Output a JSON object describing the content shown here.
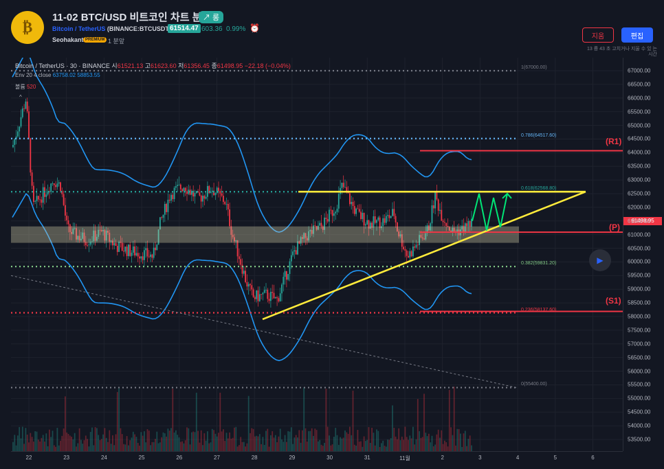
{
  "header": {
    "logo_glyph": "₿",
    "title": "11-02 BTC/USD 비트코인 차트 분석",
    "trend_badge": "↗ 롱",
    "symbol_name": "Bitcoin / TetherUS",
    "symbol_code": "(BINANCE:BTCUSDT)",
    "price": "61514.47",
    "change": "603.36",
    "change_pct": "0.99%",
    "alarm_icon": "⏰",
    "author": "Seohakant",
    "premium": "PREMIUM",
    "time_ago": "1 분앞",
    "delete_label": "지움",
    "edit_label": "편집",
    "edit_note": "13 륭 43 초 고치거나 지울 수 있 는 시간"
  },
  "legend": {
    "line1_prefix": "Bitcoin / TetherUS · 30 · BINANCE",
    "o_label": "시",
    "o_val": "61521.13",
    "h_label": "고",
    "h_val": "61623.60",
    "l_label": "저",
    "l_val": "61356.45",
    "c_label": "종",
    "c_val": "61498.95",
    "delta": "−22.18 (−0.04%)",
    "env_label": "Env 20 4 close",
    "env_upper": "63758.02",
    "env_lower": "58853.55",
    "vol_label": "볼륨",
    "vol_val": "520"
  },
  "y_axis": {
    "ticks": [
      "67000.00",
      "66500.00",
      "66000.00",
      "65500.00",
      "65000.00",
      "64500.00",
      "64000.00",
      "63500.00",
      "63000.00",
      "62500.00",
      "62000.00",
      "61500.00",
      "61000.00",
      "60500.00",
      "60000.00",
      "59500.00",
      "59000.00",
      "58500.00",
      "58000.00",
      "57500.00",
      "57000.00",
      "56500.00",
      "56000.00",
      "55500.00",
      "55000.00",
      "54500.00",
      "54000.00",
      "53500.00"
    ],
    "last_price": "61498.95"
  },
  "x_axis": {
    "ticks": [
      "22",
      "23",
      "24",
      "25",
      "26",
      "27",
      "28",
      "29",
      "30",
      "31",
      "11월",
      "2",
      "3",
      "4",
      "5",
      "6"
    ]
  },
  "fib_levels": [
    {
      "label": "1(67000.00)",
      "value": 67000
    },
    {
      "label": "0.786(64517.60)",
      "value": 64517.6
    },
    {
      "label": "0.618(62568.80)",
      "value": 62568.8
    },
    {
      "label": "0.382(59831.20)",
      "value": 59831.2
    },
    {
      "label": "0.236(58137.60)",
      "value": 58137.6
    },
    {
      "label": "0(55400.00)",
      "value": 55400
    }
  ],
  "annotations": {
    "r1": "(R1)",
    "p": "(P)",
    "s1": "(S1)"
  },
  "play_icon": "▶",
  "colors": {
    "background": "#131722",
    "up": "#26a69a",
    "down": "#f23645",
    "envelope": "#2196f3",
    "triangle": "#ffeb3b",
    "projection": "#00e676",
    "level_red": "#f23645",
    "accent": "#2962ff"
  }
}
